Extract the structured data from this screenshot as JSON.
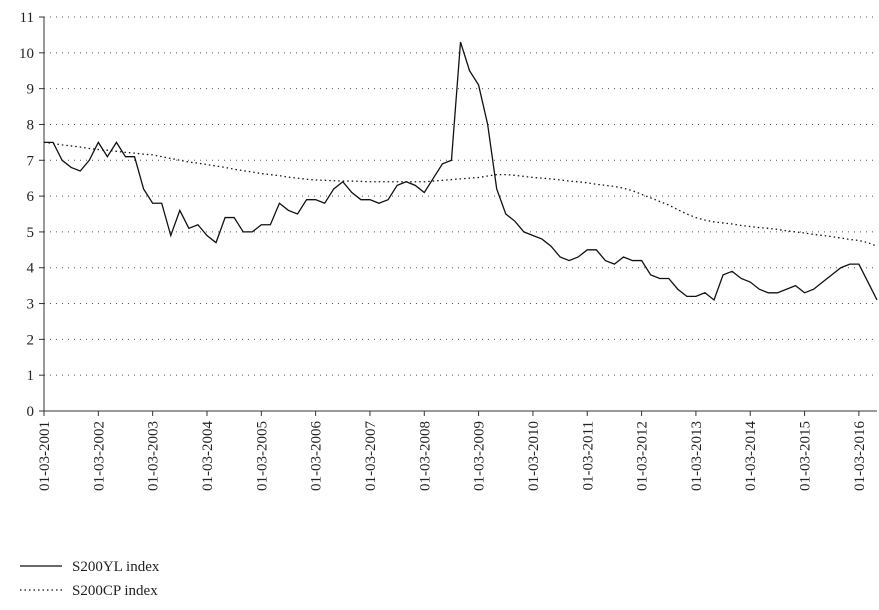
{
  "chart_data": {
    "type": "line",
    "categories": [
      "01-03-2001",
      null,
      null,
      null,
      null,
      null,
      "01-03-2002",
      null,
      null,
      null,
      null,
      null,
      "01-03-2003",
      null,
      null,
      null,
      null,
      null,
      "01-03-2004",
      null,
      null,
      null,
      null,
      null,
      "01-03-2005",
      null,
      null,
      null,
      null,
      null,
      "01-03-2006",
      null,
      null,
      null,
      null,
      null,
      "01-03-2007",
      null,
      null,
      null,
      null,
      null,
      "01-03-2008",
      null,
      null,
      null,
      null,
      null,
      "01-03-2009",
      null,
      null,
      null,
      null,
      null,
      "01-03-2010",
      null,
      null,
      null,
      null,
      null,
      "01-03-2011",
      null,
      null,
      null,
      null,
      null,
      "01-03-2012",
      null,
      null,
      null,
      null,
      null,
      "01-03-2013",
      null,
      null,
      null,
      null,
      null,
      "01-03-2014",
      null,
      null,
      null,
      null,
      null,
      "01-03-2015",
      null,
      null,
      null,
      null,
      null,
      "01-03-2016",
      null,
      null
    ],
    "series": [
      {
        "name": "S200YL index",
        "color": "#111111",
        "style": "solid",
        "values": [
          7.5,
          7.5,
          7.0,
          6.8,
          6.7,
          7.0,
          7.5,
          7.1,
          7.5,
          7.1,
          7.1,
          6.2,
          5.8,
          5.8,
          4.9,
          5.6,
          5.1,
          5.2,
          4.9,
          4.7,
          5.4,
          5.4,
          5.0,
          5.0,
          5.2,
          5.2,
          5.8,
          5.6,
          5.5,
          5.9,
          5.9,
          5.8,
          6.2,
          6.4,
          6.1,
          5.9,
          5.9,
          5.8,
          5.9,
          6.3,
          6.4,
          6.3,
          6.1,
          6.5,
          6.9,
          7.0,
          10.3,
          9.5,
          9.1,
          8.0,
          6.2,
          5.5,
          5.3,
          5.0,
          4.9,
          4.8,
          4.6,
          4.3,
          4.2,
          4.3,
          4.5,
          4.5,
          4.2,
          4.1,
          4.3,
          4.2,
          4.2,
          3.8,
          3.7,
          3.7,
          3.4,
          3.2,
          3.2,
          3.3,
          3.1,
          3.8,
          3.9,
          3.7,
          3.6,
          3.4,
          3.3,
          3.3,
          3.4,
          3.5,
          3.3,
          3.4,
          3.6,
          3.8,
          4.0,
          4.1,
          4.1,
          3.6,
          3.1
        ]
      },
      {
        "name": "S200CP index",
        "color": "#111111",
        "style": "dotted",
        "values": [
          7.5,
          7.47,
          7.43,
          7.4,
          7.37,
          7.33,
          7.3,
          7.28,
          7.25,
          7.22,
          7.2,
          7.17,
          7.15,
          7.1,
          7.05,
          7.0,
          6.95,
          6.92,
          6.88,
          6.84,
          6.8,
          6.75,
          6.71,
          6.67,
          6.63,
          6.6,
          6.57,
          6.53,
          6.5,
          6.47,
          6.45,
          6.44,
          6.43,
          6.42,
          6.42,
          6.41,
          6.4,
          6.4,
          6.4,
          6.4,
          6.4,
          6.4,
          6.4,
          6.42,
          6.44,
          6.46,
          6.48,
          6.5,
          6.52,
          6.56,
          6.6,
          6.6,
          6.58,
          6.55,
          6.52,
          6.5,
          6.48,
          6.45,
          6.42,
          6.4,
          6.37,
          6.33,
          6.3,
          6.27,
          6.22,
          6.15,
          6.05,
          5.95,
          5.85,
          5.75,
          5.62,
          5.5,
          5.4,
          5.33,
          5.28,
          5.25,
          5.22,
          5.18,
          5.15,
          5.12,
          5.1,
          5.07,
          5.03,
          5.0,
          4.97,
          4.93,
          4.9,
          4.87,
          4.83,
          4.79,
          4.76,
          4.7,
          4.6
        ]
      }
    ],
    "ylim": [
      0,
      11
    ],
    "yticks": [
      0,
      1,
      2,
      3,
      4,
      5,
      6,
      7,
      8,
      9,
      10,
      11
    ],
    "grid": true,
    "legend": "bottom-left"
  }
}
